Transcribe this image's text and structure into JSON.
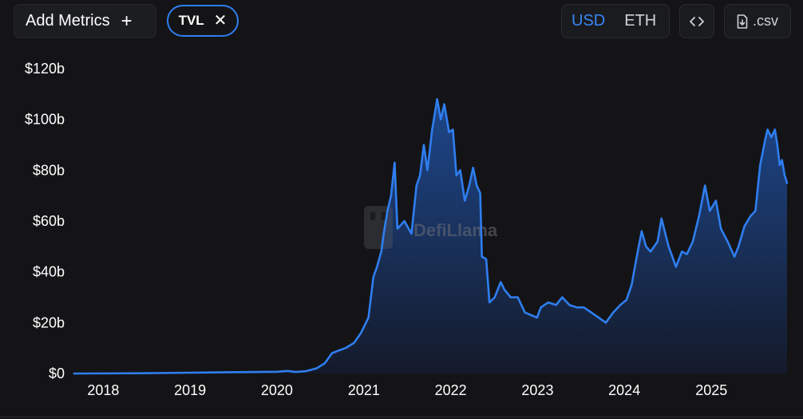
{
  "toolbar": {
    "add_metrics_label": "Add Metrics",
    "add_metrics_icon": "plus-icon",
    "metric_chip_label": "TVL",
    "metric_chip_icon": "close-icon",
    "currency_options": [
      "USD",
      "ETH"
    ],
    "currency_selected": "USD",
    "embed_icon": "code-icon",
    "csv_label": ".csv",
    "csv_icon": "file-download-icon"
  },
  "colors": {
    "background": "#141417",
    "line": "#2f7ef0",
    "accent_active": "#3a86f5"
  },
  "chart_data": {
    "type": "area",
    "title": "",
    "xlabel": "",
    "ylabel": "",
    "watermark": "DefiLlama",
    "ylim": [
      0,
      120
    ],
    "y_unit": "$ billions",
    "y_ticks": [
      "$0",
      "$20b",
      "$40b",
      "$60b",
      "$80b",
      "$100b",
      "$120b"
    ],
    "x_ticks": [
      "2018",
      "2019",
      "2020",
      "2021",
      "2022",
      "2023",
      "2024",
      "2025"
    ],
    "x_range": [
      "2017-09-01",
      "2025-11-15"
    ],
    "grid": false,
    "series": [
      {
        "values": [
          {
            "x": "2017-09-01",
            "y": 0.0
          },
          {
            "x": "2018-06-01",
            "y": 0.1
          },
          {
            "x": "2019-01-01",
            "y": 0.3
          },
          {
            "x": "2019-06-01",
            "y": 0.5
          },
          {
            "x": "2020-01-01",
            "y": 0.7
          },
          {
            "x": "2020-02-15",
            "y": 1.0
          },
          {
            "x": "2020-03-20",
            "y": 0.6
          },
          {
            "x": "2020-05-01",
            "y": 0.9
          },
          {
            "x": "2020-06-15",
            "y": 2.0
          },
          {
            "x": "2020-07-20",
            "y": 4.0
          },
          {
            "x": "2020-08-20",
            "y": 8.0
          },
          {
            "x": "2020-09-15",
            "y": 9.0
          },
          {
            "x": "2020-10-15",
            "y": 10.0
          },
          {
            "x": "2020-11-20",
            "y": 12.0
          },
          {
            "x": "2020-12-20",
            "y": 16.0
          },
          {
            "x": "2021-01-20",
            "y": 22.0
          },
          {
            "x": "2021-02-10",
            "y": 38.0
          },
          {
            "x": "2021-02-25",
            "y": 42.0
          },
          {
            "x": "2021-03-15",
            "y": 48.0
          },
          {
            "x": "2021-03-25",
            "y": 55.0
          },
          {
            "x": "2021-04-10",
            "y": 64.0
          },
          {
            "x": "2021-04-25",
            "y": 70.0
          },
          {
            "x": "2021-05-10",
            "y": 83.0
          },
          {
            "x": "2021-05-22",
            "y": 57.0
          },
          {
            "x": "2021-06-20",
            "y": 60.0
          },
          {
            "x": "2021-07-20",
            "y": 55.0
          },
          {
            "x": "2021-08-10",
            "y": 74.0
          },
          {
            "x": "2021-08-25",
            "y": 78.0
          },
          {
            "x": "2021-09-10",
            "y": 90.0
          },
          {
            "x": "2021-09-25",
            "y": 80.0
          },
          {
            "x": "2021-10-15",
            "y": 96.0
          },
          {
            "x": "2021-11-05",
            "y": 108.0
          },
          {
            "x": "2021-11-20",
            "y": 100.0
          },
          {
            "x": "2021-12-05",
            "y": 106.0
          },
          {
            "x": "2021-12-25",
            "y": 95.0
          },
          {
            "x": "2022-01-10",
            "y": 96.0
          },
          {
            "x": "2022-01-25",
            "y": 78.0
          },
          {
            "x": "2022-02-10",
            "y": 80.0
          },
          {
            "x": "2022-03-01",
            "y": 68.0
          },
          {
            "x": "2022-03-20",
            "y": 74.0
          },
          {
            "x": "2022-04-05",
            "y": 81.0
          },
          {
            "x": "2022-04-20",
            "y": 74.0
          },
          {
            "x": "2022-05-05",
            "y": 71.0
          },
          {
            "x": "2022-05-12",
            "y": 46.0
          },
          {
            "x": "2022-05-30",
            "y": 45.0
          },
          {
            "x": "2022-06-13",
            "y": 28.0
          },
          {
            "x": "2022-07-05",
            "y": 30.0
          },
          {
            "x": "2022-07-30",
            "y": 36.0
          },
          {
            "x": "2022-08-15",
            "y": 33.0
          },
          {
            "x": "2022-09-10",
            "y": 30.0
          },
          {
            "x": "2022-10-10",
            "y": 30.0
          },
          {
            "x": "2022-11-09",
            "y": 24.0
          },
          {
            "x": "2022-12-30",
            "y": 22.0
          },
          {
            "x": "2023-01-15",
            "y": 26.0
          },
          {
            "x": "2023-02-15",
            "y": 28.0
          },
          {
            "x": "2023-03-20",
            "y": 27.0
          },
          {
            "x": "2023-04-15",
            "y": 30.0
          },
          {
            "x": "2023-05-15",
            "y": 27.0
          },
          {
            "x": "2023-06-15",
            "y": 26.0
          },
          {
            "x": "2023-07-15",
            "y": 26.0
          },
          {
            "x": "2023-08-15",
            "y": 24.0
          },
          {
            "x": "2023-09-15",
            "y": 22.0
          },
          {
            "x": "2023-10-15",
            "y": 20.0
          },
          {
            "x": "2023-11-15",
            "y": 24.0
          },
          {
            "x": "2023-12-15",
            "y": 27.0
          },
          {
            "x": "2024-01-10",
            "y": 29.0
          },
          {
            "x": "2024-02-01",
            "y": 35.0
          },
          {
            "x": "2024-02-20",
            "y": 45.0
          },
          {
            "x": "2024-03-14",
            "y": 56.0
          },
          {
            "x": "2024-04-01",
            "y": 50.0
          },
          {
            "x": "2024-04-20",
            "y": 48.0
          },
          {
            "x": "2024-05-20",
            "y": 52.0
          },
          {
            "x": "2024-06-05",
            "y": 61.0
          },
          {
            "x": "2024-07-05",
            "y": 50.0
          },
          {
            "x": "2024-08-05",
            "y": 42.0
          },
          {
            "x": "2024-08-30",
            "y": 48.0
          },
          {
            "x": "2024-09-20",
            "y": 47.0
          },
          {
            "x": "2024-10-15",
            "y": 52.0
          },
          {
            "x": "2024-11-10",
            "y": 62.0
          },
          {
            "x": "2024-12-05",
            "y": 74.0
          },
          {
            "x": "2024-12-25",
            "y": 64.0
          },
          {
            "x": "2025-01-20",
            "y": 68.0
          },
          {
            "x": "2025-02-10",
            "y": 57.0
          },
          {
            "x": "2025-03-10",
            "y": 52.0
          },
          {
            "x": "2025-04-08",
            "y": 46.0
          },
          {
            "x": "2025-04-25",
            "y": 50.0
          },
          {
            "x": "2025-05-20",
            "y": 58.0
          },
          {
            "x": "2025-06-15",
            "y": 62.0
          },
          {
            "x": "2025-07-05",
            "y": 64.0
          },
          {
            "x": "2025-07-25",
            "y": 82.0
          },
          {
            "x": "2025-08-15",
            "y": 92.0
          },
          {
            "x": "2025-08-25",
            "y": 96.0
          },
          {
            "x": "2025-09-10",
            "y": 93.0
          },
          {
            "x": "2025-09-25",
            "y": 96.0
          },
          {
            "x": "2025-10-05",
            "y": 90.0
          },
          {
            "x": "2025-10-15",
            "y": 82.0
          },
          {
            "x": "2025-10-25",
            "y": 84.0
          },
          {
            "x": "2025-11-05",
            "y": 78.0
          },
          {
            "x": "2025-11-15",
            "y": 75.0
          }
        ]
      }
    ]
  }
}
